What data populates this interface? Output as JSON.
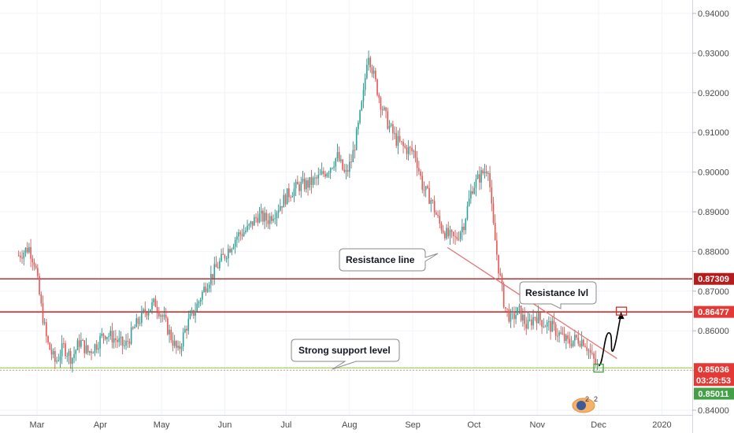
{
  "chart_data": {
    "type": "candlestick",
    "x_ticks": [
      "Mar",
      "Apr",
      "May",
      "Jun",
      "Jul",
      "Aug",
      "Sep",
      "Oct",
      "Nov",
      "Dec",
      "2020"
    ],
    "y_ticks": [
      "0.94000",
      "0.93000",
      "0.92000",
      "0.91000",
      "0.90000",
      "0.89000",
      "0.88000",
      "0.87000",
      "0.86000",
      "0.85000",
      "0.84000"
    ],
    "ylim": [
      0.8385,
      0.9425
    ],
    "grid": true,
    "series": [
      {
        "close_path": [
          [
            "Feb 20",
            0.879
          ],
          [
            "Feb 25",
            0.881
          ],
          [
            "Feb 28",
            0.877
          ],
          [
            "Mar 3",
            0.866
          ],
          [
            "Mar 6",
            0.857
          ],
          [
            "Mar 10",
            0.852
          ],
          [
            "Mar 14",
            0.856
          ],
          [
            "Mar 18",
            0.853
          ],
          [
            "Mar 22",
            0.8575
          ],
          [
            "Mar 26",
            0.8545
          ],
          [
            "Mar 30",
            0.8565
          ],
          [
            "Apr 3",
            0.8595
          ],
          [
            "Apr 8",
            0.858
          ],
          [
            "Apr 13",
            0.856
          ],
          [
            "Apr 18",
            0.861
          ],
          [
            "Apr 23",
            0.865
          ],
          [
            "Apr 28",
            0.867
          ],
          [
            "May 2",
            0.863
          ],
          [
            "May 6",
            0.858
          ],
          [
            "May 9",
            0.8545
          ],
          [
            "May 13",
            0.861
          ],
          [
            "May 18",
            0.866
          ],
          [
            "May 23",
            0.872
          ],
          [
            "May 28",
            0.876
          ],
          [
            "Jun 2",
            0.88
          ],
          [
            "Jun 7",
            0.884
          ],
          [
            "Jun 12",
            0.8855
          ],
          [
            "Jun 17",
            0.889
          ],
          [
            "Jun 22",
            0.888
          ],
          [
            "Jun 27",
            0.891
          ],
          [
            "Jul 2",
            0.8945
          ],
          [
            "Jul 7",
            0.8965
          ],
          [
            "Jul 12",
            0.897
          ],
          [
            "Jul 17",
            0.8985
          ],
          [
            "Jul 22",
            0.901
          ],
          [
            "Jul 26",
            0.904
          ],
          [
            "Jul 30",
            0.899
          ],
          [
            "Aug 2",
            0.903
          ],
          [
            "Aug 5",
            0.9105
          ],
          [
            "Aug 8",
            0.92
          ],
          [
            "Aug 10",
            0.931
          ],
          [
            "Aug 13",
            0.924
          ],
          [
            "Aug 16",
            0.918
          ],
          [
            "Aug 20",
            0.912
          ],
          [
            "Aug 24",
            0.908
          ],
          [
            "Aug 28",
            0.906
          ],
          [
            "Sep 2",
            0.905
          ],
          [
            "Sep 6",
            0.896
          ],
          [
            "Sep 10",
            0.893
          ],
          [
            "Sep 14",
            0.887
          ],
          [
            "Sep 18",
            0.884
          ],
          [
            "Sep 22",
            0.883
          ],
          [
            "Sep 26",
            0.887
          ],
          [
            "Sep 30",
            0.896
          ],
          [
            "Oct 4",
            0.899
          ],
          [
            "Oct 8",
            0.9015
          ],
          [
            "Oct 10",
            0.888
          ],
          [
            "Oct 13",
            0.876
          ],
          [
            "Oct 16",
            0.866
          ],
          [
            "Oct 19",
            0.863
          ],
          [
            "Oct 23",
            0.865
          ],
          [
            "Oct 27",
            0.861
          ],
          [
            "Oct 31",
            0.864
          ],
          [
            "Nov 4",
            0.862
          ],
          [
            "Nov 8",
            0.861
          ],
          [
            "Nov 12",
            0.859
          ],
          [
            "Nov 16",
            0.857
          ],
          [
            "Nov 20",
            0.858
          ],
          [
            "Nov 24",
            0.8575
          ],
          [
            "Nov 28",
            0.853
          ],
          [
            "Dec 1",
            0.8504
          ]
        ]
      }
    ],
    "horizontal_levels": [
      {
        "price": 0.87309,
        "label": "0.87309",
        "color": "#b71c1c"
      },
      {
        "price": 0.86477,
        "label": "0.86477",
        "color": "#d50000"
      },
      {
        "price": 0.85036,
        "label": "0.85036",
        "color": "#8bc34a"
      }
    ],
    "badges": [
      {
        "text": "0.87309",
        "price": 0.87309,
        "color": "#b71c1c"
      },
      {
        "text": "0.86477",
        "price": 0.86477,
        "color": "#e53935"
      },
      {
        "text": "0.85036",
        "price": 0.85036,
        "color": "#e53935"
      },
      {
        "text": "03:28:53",
        "price": 0.85036,
        "color": "#e53935"
      },
      {
        "text": "0.85011",
        "price": 0.85011,
        "color": "#43a047"
      }
    ],
    "annotations": [
      {
        "text": "Resistance line"
      },
      {
        "text": "Resistance lvl"
      },
      {
        "text": "Strong support level"
      }
    ],
    "event_icon": {
      "label": "2"
    }
  }
}
